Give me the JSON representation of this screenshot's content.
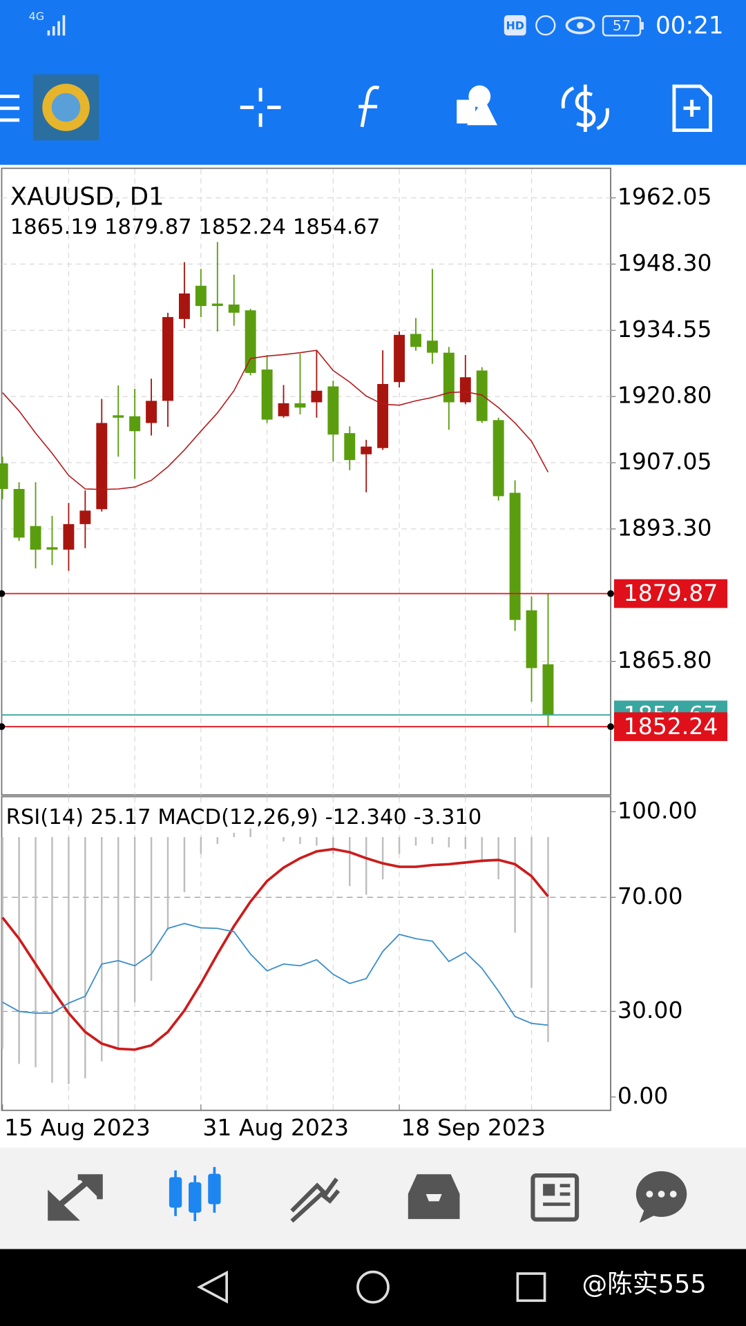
{
  "status_bar": {
    "network": "4G",
    "hd": "HD",
    "battery": "57",
    "time": "00:21"
  },
  "chart_data": {
    "type": "candlestick",
    "title": "XAUUSD, D1",
    "last": {
      "open": 1865.19,
      "high": 1879.87,
      "low": 1852.24,
      "close": 1854.67
    },
    "categories": [
      "15 Aug 2023",
      null,
      null,
      null,
      null,
      null,
      null,
      null,
      null,
      null,
      null,
      null,
      "31 Aug 2023",
      null,
      null,
      null,
      null,
      null,
      null,
      null,
      null,
      null,
      null,
      null,
      "18 Sep 2023",
      null,
      null,
      null,
      null,
      null,
      null,
      null,
      null,
      null
    ],
    "open": [
      1906.9,
      1901.6,
      1893.9,
      1889.5,
      1889.0,
      1894.3,
      1897.4,
      1916.9,
      1916.7,
      1915.3,
      1919.9,
      1936.9,
      1943.8,
      1940.1,
      1939.9,
      1938.7,
      1926.4,
      1916.7,
      1919.4,
      1919.6,
      1922.9,
      1913.2,
      1908.8,
      1910.1,
      1923.8,
      1933.8,
      1932.4,
      1929.9,
      1919.6,
      1926.2,
      1915.9,
      1900.8,
      1876.4,
      1865.19
    ],
    "high": [
      1908.3,
      1903.0,
      1903.0,
      1896.0,
      1898.7,
      1901.3,
      1920.3,
      1923.1,
      1922.4,
      1924.5,
      1938.2,
      1948.7,
      1947.3,
      1952.9,
      1946.1,
      1939.0,
      1929.4,
      1923.2,
      1929.7,
      1930.4,
      1924.1,
      1914.6,
      1911.8,
      1930.4,
      1934.3,
      1937.1,
      1947.3,
      1931.1,
      1929.4,
      1926.9,
      1916.4,
      1903.4,
      1879.3,
      1879.87
    ],
    "low": [
      1899.5,
      1890.8,
      1885.1,
      1885.8,
      1884.6,
      1889.3,
      1896.9,
      1908.3,
      1903.7,
      1912.7,
      1914.5,
      1935.0,
      1937.3,
      1934.3,
      1935.5,
      1925.2,
      1915.3,
      1916.4,
      1917.1,
      1916.4,
      1907.3,
      1905.5,
      1900.9,
      1909.7,
      1922.7,
      1930.3,
      1927.6,
      1913.9,
      1919.2,
      1915.3,
      1899.2,
      1872.1,
      1857.4,
      1852.24
    ],
    "close": [
      1901.6,
      1891.5,
      1889.0,
      1889.0,
      1894.3,
      1897.1,
      1915.3,
      1916.4,
      1913.6,
      1919.9,
      1937.3,
      1942.2,
      1939.6,
      1939.6,
      1938.2,
      1925.7,
      1916.0,
      1919.4,
      1918.5,
      1922.0,
      1912.9,
      1907.6,
      1910.4,
      1923.4,
      1933.6,
      1931.1,
      1929.9,
      1919.6,
      1924.8,
      1915.7,
      1900.1,
      1874.4,
      1864.4,
      1854.67
    ],
    "up_color": "#a8150f",
    "down_color": "#5a9e0f",
    "ma": {
      "color": "#b3191b",
      "values": [
        1921.6,
        1917.8,
        1913.2,
        1909.0,
        1904.4,
        1901.6,
        1901.5,
        1901.6,
        1902.0,
        1903.4,
        1906.2,
        1909.7,
        1913.6,
        1917.4,
        1922.0,
        1928.7,
        1929.2,
        1929.5,
        1929.9,
        1930.4,
        1926.2,
        1923.8,
        1920.9,
        1919.2,
        1919.0,
        1919.9,
        1920.6,
        1921.6,
        1921.8,
        1921.1,
        1918.5,
        1915.3,
        1911.5,
        1905.1
      ]
    },
    "ylim": [
      1838.06,
      1968.02
    ],
    "yticks": [
      1962.05,
      {
        "value": 1948.3,
        "label": "1948.30"
      },
      1934.55,
      {
        "value": 1920.8,
        "label": "1920.80"
      },
      1907.05,
      {
        "value": 1893.3,
        "label": "1893.30"
      },
      {
        "value": 1865.8,
        "label": "1865.80"
      }
    ],
    "grid": true,
    "price_line_color": "#e0101a",
    "bid_line_color": "#3aa6a0",
    "indicator": {
      "ylim": [
        -4.7,
        105.3
      ],
      "yticks": [
        {
          "value": 100,
          "label": "100.00"
        },
        {
          "value": 70,
          "label": "70.00"
        },
        {
          "value": 30,
          "label": "30.00"
        },
        {
          "value": 0,
          "label": "0.00"
        }
      ],
      "levels": [
        70,
        30
      ],
      "rsi": {
        "name": "RSI(14)",
        "color": "#3b8fc9",
        "values": [
          33.2,
          30.0,
          29.4,
          29.4,
          32.9,
          35.3,
          46.6,
          47.8,
          46.0,
          50.1,
          59.1,
          60.8,
          59.3,
          59.1,
          57.9,
          50.1,
          44.2,
          46.6,
          46.0,
          48.1,
          43.0,
          39.8,
          41.5,
          51.0,
          57.0,
          55.5,
          54.6,
          47.5,
          50.7,
          45.1,
          37.1,
          28.2,
          25.8,
          25.17
        ]
      },
      "macd": {
        "name": "MACD(12,26,9)",
        "main": {
          "value": -12.34,
          "label": "-12.340"
        },
        "signal": {
          "value": -3.31,
          "label": "-3.310"
        },
        "signal_color": "#cc1b1b",
        "histogram_color": "#bdbdbd",
        "zero": 91.1,
        "signal_values": [
          62.9,
          55.5,
          46.6,
          37.7,
          29.4,
          22.8,
          18.7,
          16.9,
          16.6,
          18.1,
          22.8,
          30.3,
          39.8,
          50.1,
          59.9,
          68.5,
          75.7,
          80.4,
          83.7,
          86.1,
          86.9,
          85.8,
          83.7,
          81.9,
          80.7,
          80.7,
          81.3,
          81.6,
          82.2,
          82.8,
          83.1,
          81.6,
          77.4,
          70.3
        ],
        "histogram_values": [
          16.9,
          11.6,
          10.4,
          5.0,
          4.5,
          6.5,
          12.5,
          16.9,
          33.2,
          40.7,
          58.5,
          71.8,
          85.2,
          88.7,
          92.6,
          94.1,
          91.1,
          89.6,
          88.7,
          88.1,
          85.2,
          73.9,
          70.9,
          76.3,
          85.2,
          88.1,
          88.7,
          87.5,
          86.9,
          82.2,
          76.3,
          57.6,
          38.3,
          19.3
        ]
      }
    }
  },
  "watermark": "@陈实555"
}
